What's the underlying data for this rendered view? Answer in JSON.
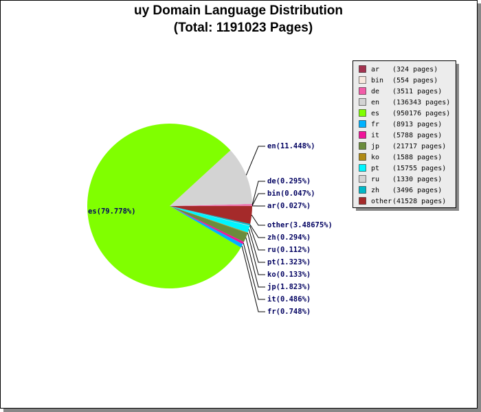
{
  "chart_data": {
    "type": "pie",
    "title": "uy Domain Language Distribution",
    "subtitle": "(Total: 1191023 Pages)",
    "categories": [
      "ar",
      "bin",
      "de",
      "en",
      "es",
      "fr",
      "it",
      "jp",
      "ko",
      "pt",
      "ru",
      "zh",
      "other"
    ],
    "values": [
      324,
      554,
      3511,
      136343,
      950176,
      8913,
      5788,
      21717,
      1588,
      15755,
      1330,
      3496,
      41528
    ],
    "value_labels": [
      "(324 pages)",
      "(554 pages)",
      "(3511 pages)",
      "(136343 pages)",
      "(950176 pages)",
      "(8913 pages)",
      "(5788 pages)",
      "(21717 pages)",
      "(1588 pages)",
      "(15755 pages)",
      "(1330 pages)",
      "(3496 pages)",
      "(41528 pages)"
    ],
    "slice_labels": [
      "ar(0.027%)",
      "bin(0.047%)",
      "de(0.295%)",
      "en(11.448%)",
      "es(79.778%)",
      "fr(0.748%)",
      "it(0.486%)",
      "jp(1.823%)",
      "ko(0.133%)",
      "pt(1.323%)",
      "ru(0.112%)",
      "zh(0.294%)",
      "other(3.48675%)"
    ],
    "colors": [
      "#a3324f",
      "#f7e8de",
      "#f25ca8",
      "#d3d3d3",
      "#80ff00",
      "#00b2ff",
      "#f0149a",
      "#6b8c3c",
      "#b08a14",
      "#00f5ff",
      "#d3d3d3",
      "#00b8c8",
      "#a52a2a"
    ],
    "legend": "top-right"
  }
}
